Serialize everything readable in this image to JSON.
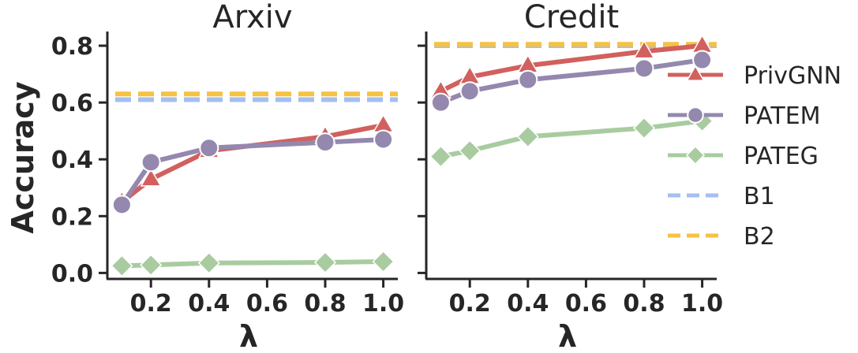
{
  "chart_data": [
    {
      "type": "line",
      "title": "Arxiv",
      "xlabel": "λ",
      "ylabel": "Accuracy",
      "xlim": [
        0.05,
        1.05
      ],
      "ylim": [
        -0.01,
        0.85
      ],
      "xticks": [
        0.2,
        0.4,
        0.6,
        0.8,
        1.0
      ],
      "xtick_labels": [
        "0.2",
        "0.4",
        "0.6",
        "0.8",
        "1.0"
      ],
      "yticks": [
        0.0,
        0.2,
        0.4,
        0.6,
        0.8
      ],
      "ytick_labels": [
        "0.0",
        "0.2",
        "0.4",
        "0.6",
        "0.8"
      ],
      "x": [
        0.1,
        0.2,
        0.4,
        0.8,
        1.0
      ],
      "series": [
        {
          "name": "PrivGNN",
          "values": [
            0.25,
            0.33,
            0.43,
            0.48,
            0.52
          ],
          "color": "#d1605e",
          "marker": "triangle"
        },
        {
          "name": "PATEM",
          "values": [
            0.24,
            0.39,
            0.44,
            0.46,
            0.47
          ],
          "color": "#9488ae",
          "marker": "circle"
        },
        {
          "name": "PATEG",
          "values": [
            0.025,
            0.028,
            0.035,
            0.037,
            0.04
          ],
          "color": "#a8cca0",
          "marker": "diamond"
        },
        {
          "name": "B1",
          "values": [
            0.61,
            0.61,
            0.61,
            0.61,
            0.61
          ],
          "color": "#a4bff0",
          "style": "dashed"
        },
        {
          "name": "B2",
          "values": [
            0.63,
            0.63,
            0.63,
            0.63,
            0.63
          ],
          "color": "#f5c242",
          "style": "dashed"
        }
      ]
    },
    {
      "type": "line",
      "title": "Credit",
      "xlabel": "λ",
      "ylabel": "",
      "xlim": [
        0.05,
        1.05
      ],
      "ylim": [
        -0.01,
        0.85
      ],
      "xticks": [
        0.2,
        0.4,
        0.6,
        0.8,
        1.0
      ],
      "xtick_labels": [
        "0.2",
        "0.4",
        "0.6",
        "0.8",
        "1.0"
      ],
      "yticks": [
        0.0,
        0.2,
        0.4,
        0.6,
        0.8
      ],
      "ytick_labels": [
        "",
        "",
        "",
        "",
        ""
      ],
      "x": [
        0.1,
        0.2,
        0.4,
        0.8,
        1.0
      ],
      "series": [
        {
          "name": "PrivGNN",
          "values": [
            0.64,
            0.69,
            0.73,
            0.78,
            0.8
          ],
          "color": "#d1605e",
          "marker": "triangle"
        },
        {
          "name": "PATEM",
          "values": [
            0.6,
            0.64,
            0.68,
            0.72,
            0.75
          ],
          "color": "#9488ae",
          "marker": "circle"
        },
        {
          "name": "PATEG",
          "values": [
            0.41,
            0.43,
            0.48,
            0.51,
            0.535
          ],
          "color": "#a8cca0",
          "marker": "diamond"
        },
        {
          "name": "B1",
          "values": [
            0.8,
            0.8,
            0.8,
            0.8,
            0.8
          ],
          "color": "#a4bff0",
          "style": "dashed"
        },
        {
          "name": "B2",
          "values": [
            0.805,
            0.805,
            0.805,
            0.805,
            0.805
          ],
          "color": "#f5c242",
          "style": "dashed"
        }
      ]
    }
  ],
  "legend": {
    "placement": "right",
    "items": [
      {
        "label": "PrivGNN",
        "color": "#d1605e",
        "marker": "triangle",
        "style": "solid"
      },
      {
        "label": "PATEM",
        "color": "#9488ae",
        "marker": "circle",
        "style": "solid"
      },
      {
        "label": "PATEG",
        "color": "#a8cca0",
        "marker": "diamond",
        "style": "solid"
      },
      {
        "label": "B1",
        "color": "#a4bff0",
        "marker": "none",
        "style": "dashed"
      },
      {
        "label": "B2",
        "color": "#f5c242",
        "marker": "none",
        "style": "dashed"
      }
    ]
  }
}
